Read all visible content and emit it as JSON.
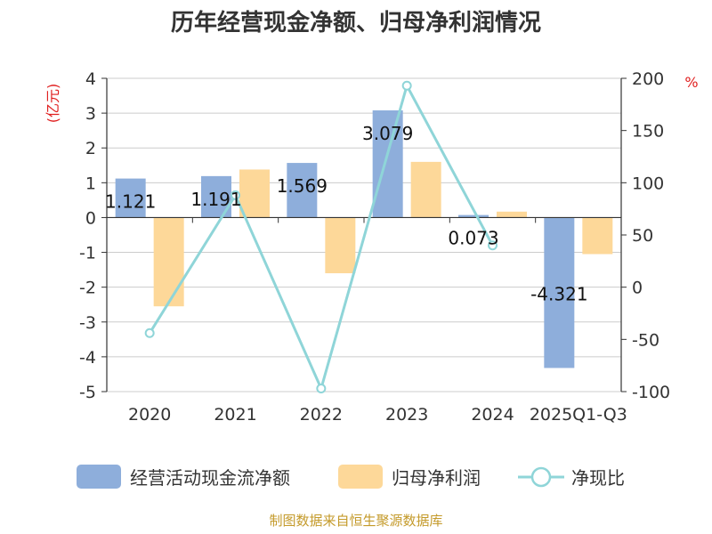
{
  "chart_data": {
    "type": "bar",
    "title": "历年经营现金净额、归母净利润情况",
    "categories": [
      "2020",
      "2021",
      "2022",
      "2023",
      "2024",
      "2025Q1-Q3"
    ],
    "series": [
      {
        "name": "经营活动现金流净额",
        "type": "bar",
        "axis": "left",
        "color": "#8eaedb",
        "values": [
          1.121,
          1.191,
          1.569,
          3.079,
          0.073,
          -4.321
        ],
        "labels": [
          "1.121",
          "1.191",
          "1.569",
          "3.079",
          "0.073",
          "-4.321"
        ]
      },
      {
        "name": "归母净利润",
        "type": "bar",
        "axis": "left",
        "color": "#fdd899",
        "values": [
          -2.55,
          1.38,
          -1.6,
          1.6,
          0.17,
          -1.05
        ]
      },
      {
        "name": "净现比",
        "type": "line",
        "axis": "right",
        "color": "#8fd5d8",
        "values": [
          -44,
          88,
          -97,
          193,
          40,
          null
        ]
      }
    ],
    "y_left": {
      "unit": "(亿元)",
      "min": -5,
      "max": 4,
      "ticks": [
        4,
        3,
        2,
        1,
        0,
        -1,
        -2,
        -3,
        -4,
        -5
      ]
    },
    "y_right": {
      "unit": "%",
      "min": -100,
      "max": 200,
      "ticks": [
        200,
        150,
        100,
        50,
        0,
        -50,
        -100
      ]
    },
    "grid": true,
    "legend_position": "bottom",
    "source": "制图数据来自恒生聚源数据库"
  }
}
